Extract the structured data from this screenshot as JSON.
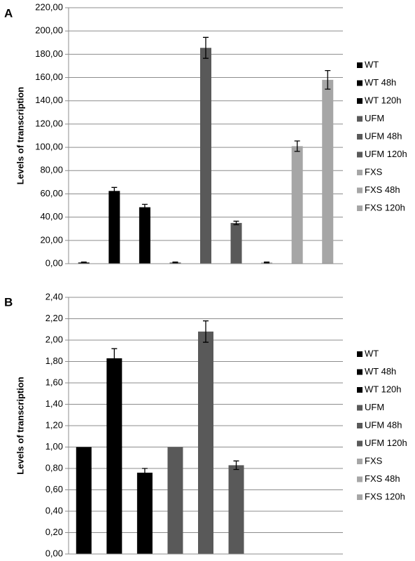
{
  "chart_data": [
    {
      "type": "bar",
      "panel_label": "A",
      "y_label": "Levels of transcription",
      "categories": [
        null
      ],
      "series": [
        {
          "name": "WT",
          "color": "#000000",
          "values": [
            1
          ],
          "errors": [
            0.4
          ]
        },
        {
          "name": "WT 48h",
          "color": "#000000",
          "values": [
            62.5
          ],
          "errors": [
            3
          ]
        },
        {
          "name": "WT 120h",
          "color": "#000000",
          "values": [
            48.5
          ],
          "errors": [
            2.5
          ]
        },
        {
          "name": "UFM",
          "color": "#595959",
          "values": [
            1
          ],
          "errors": [
            0.4
          ]
        },
        {
          "name": "UFM 48h",
          "color": "#595959",
          "values": [
            185.5
          ],
          "errors": [
            9
          ]
        },
        {
          "name": "UFM 120h",
          "color": "#595959",
          "values": [
            35
          ],
          "errors": [
            1.5
          ]
        },
        {
          "name": "FXS",
          "color": "#a6a6a6",
          "values": [
            1
          ],
          "errors": [
            0.4
          ]
        },
        {
          "name": "FXS 48h",
          "color": "#a6a6a6",
          "values": [
            101
          ],
          "errors": [
            4.5
          ]
        },
        {
          "name": "FXS 120h",
          "color": "#a6a6a6",
          "values": [
            158
          ],
          "errors": [
            8
          ]
        }
      ],
      "ylim": [
        0,
        220
      ],
      "yticks": [
        {
          "value": 0,
          "label": "0,00"
        },
        {
          "value": 20,
          "label": "20,00"
        },
        {
          "value": 40,
          "label": "40,00"
        },
        {
          "value": 60,
          "label": "60,00"
        },
        {
          "value": 80,
          "label": "80,00"
        },
        {
          "value": 100,
          "label": "100,00"
        },
        {
          "value": 120,
          "label": "120,00"
        },
        {
          "value": 140,
          "label": "140,00"
        },
        {
          "value": 160,
          "label": "160,00"
        },
        {
          "value": 180,
          "label": "180,00"
        },
        {
          "value": 200,
          "label": "200,00"
        },
        {
          "value": 220,
          "label": "220,00"
        }
      ],
      "grid": true,
      "legend": "right"
    },
    {
      "type": "bar",
      "panel_label": "B",
      "y_label": "Levels of transcription",
      "categories": [
        null
      ],
      "series": [
        {
          "name": "WT",
          "color": "#000000",
          "values": [
            1.0
          ],
          "errors": [
            null
          ]
        },
        {
          "name": "WT 48h",
          "color": "#000000",
          "values": [
            1.83
          ],
          "errors": [
            0.09
          ]
        },
        {
          "name": "WT 120h",
          "color": "#000000",
          "values": [
            0.76
          ],
          "errors": [
            0.04
          ]
        },
        {
          "name": "UFM",
          "color": "#595959",
          "values": [
            1.0
          ],
          "errors": [
            null
          ]
        },
        {
          "name": "UFM 48h",
          "color": "#595959",
          "values": [
            2.08
          ],
          "errors": [
            0.1
          ]
        },
        {
          "name": "UFM 120h",
          "color": "#595959",
          "values": [
            0.83
          ],
          "errors": [
            0.04
          ]
        },
        {
          "name": "FXS",
          "color": "#a6a6a6",
          "values": [
            null
          ],
          "errors": [
            null
          ]
        },
        {
          "name": "FXS 48h",
          "color": "#a6a6a6",
          "values": [
            null
          ],
          "errors": [
            null
          ]
        },
        {
          "name": "FXS 120h",
          "color": "#a6a6a6",
          "values": [
            null
          ],
          "errors": [
            null
          ]
        }
      ],
      "ylim": [
        0,
        2.4
      ],
      "yticks": [
        {
          "value": 0,
          "label": "0,00"
        },
        {
          "value": 0.2,
          "label": "0,20"
        },
        {
          "value": 0.4,
          "label": "0,40"
        },
        {
          "value": 0.6,
          "label": "0,60"
        },
        {
          "value": 0.8,
          "label": "0,80"
        },
        {
          "value": 1.0,
          "label": "1,00"
        },
        {
          "value": 1.2,
          "label": "1,20"
        },
        {
          "value": 1.4,
          "label": "1,40"
        },
        {
          "value": 1.6,
          "label": "1,60"
        },
        {
          "value": 1.8,
          "label": "1,80"
        },
        {
          "value": 2.0,
          "label": "2,00"
        },
        {
          "value": 2.2,
          "label": "2,20"
        },
        {
          "value": 2.4,
          "label": "2,40"
        }
      ],
      "grid": true,
      "legend": "right"
    }
  ]
}
